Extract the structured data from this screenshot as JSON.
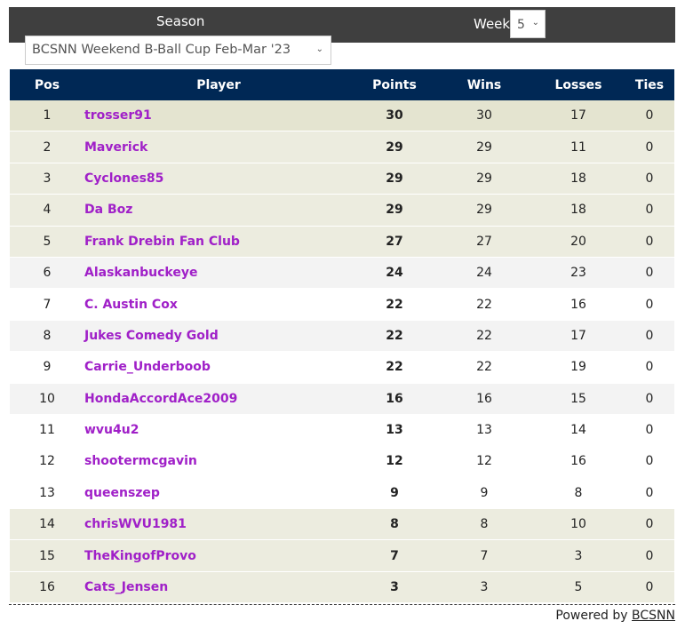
{
  "filters": {
    "season_label": "Season",
    "season_value": "BCSNN Weekend B-Ball Cup Feb-Mar '23",
    "week_label": "Week",
    "week_value": "5"
  },
  "table": {
    "headers": [
      "Pos",
      "Player",
      "Points",
      "Wins",
      "Losses",
      "Ties"
    ],
    "rows": [
      [
        "1",
        "trosser91",
        "30",
        "30",
        "17",
        "0"
      ],
      [
        "2",
        "Maverick",
        "29",
        "29",
        "11",
        "0"
      ],
      [
        "3",
        "Cyclones85",
        "29",
        "29",
        "18",
        "0"
      ],
      [
        "4",
        "Da Boz",
        "29",
        "29",
        "18",
        "0"
      ],
      [
        "5",
        "Frank Drebin Fan Club",
        "27",
        "27",
        "20",
        "0"
      ],
      [
        "6",
        "Alaskanbuckeye",
        "24",
        "24",
        "23",
        "0"
      ],
      [
        "7",
        "C. Austin Cox",
        "22",
        "22",
        "16",
        "0"
      ],
      [
        "8",
        "Jukes Comedy Gold",
        "22",
        "22",
        "17",
        "0"
      ],
      [
        "9",
        "Carrie_Underboob",
        "22",
        "22",
        "19",
        "0"
      ],
      [
        "10",
        "HondaAccordAce2009",
        "16",
        "16",
        "15",
        "0"
      ],
      [
        "11",
        "wvu4u2",
        "13",
        "13",
        "14",
        "0"
      ],
      [
        "12",
        "shootermcgavin",
        "12",
        "12",
        "16",
        "0"
      ],
      [
        "13",
        "queenszep",
        "9",
        "9",
        "8",
        "0"
      ],
      [
        "14",
        "chrisWVU1981",
        "8",
        "8",
        "10",
        "0"
      ],
      [
        "15",
        "TheKingofProvo",
        "7",
        "7",
        "3",
        "0"
      ],
      [
        "16",
        "Cats_Jensen",
        "3",
        "3",
        "5",
        "0"
      ]
    ]
  },
  "footer": {
    "powered_by": "Powered by",
    "link": "BCSNN"
  },
  "colors": {
    "header_bg": "#002855",
    "player_link": "#a020c8",
    "topbar": "#3f3f3f"
  }
}
